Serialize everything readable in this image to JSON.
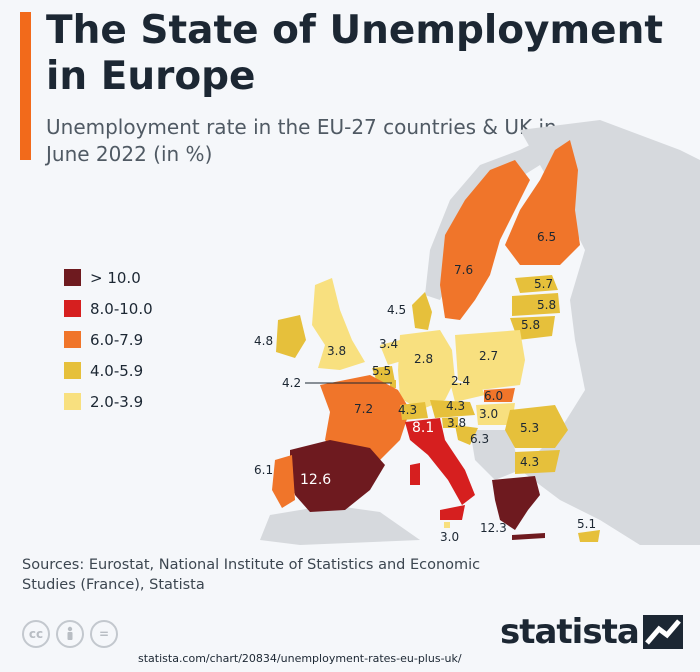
{
  "title": "The State of Unemployment in Europe",
  "subtitle": "Unemployment rate in the EU-27 countries & UK in June 2022 (in %)",
  "colors": {
    "accent": "#f26a1b",
    "gt10": "#6e1a1f",
    "r8to10": "#d61f1f",
    "r6to8": "#f0752a",
    "r4to6": "#e6c03b",
    "r2to4": "#f8e07f",
    "non_eu": "#d6d9dd",
    "sea": "#f5f7fa"
  },
  "legend": [
    {
      "label": "> 10.0",
      "color": "#6e1a1f"
    },
    {
      "label": "8.0-10.0",
      "color": "#d61f1f"
    },
    {
      "label": "6.0-7.9",
      "color": "#f0752a"
    },
    {
      "label": "4.0-5.9",
      "color": "#e6c03b"
    },
    {
      "label": "2.0-3.9",
      "color": "#f8e07f"
    }
  ],
  "map_labels": {
    "finland": "6.5",
    "sweden": "7.6",
    "estonia": "5.7",
    "latvia": "5.8",
    "lithuania": "5.8",
    "denmark": "4.5",
    "ireland": "4.8",
    "uk": "3.8",
    "netherlands": "3.4",
    "belgium": "5.5",
    "luxembourg": "4.2",
    "germany": "2.8",
    "poland": "2.7",
    "czechia": "2.4",
    "slovakia": "6.0",
    "france": "7.2",
    "switzerland_area": "4.3",
    "austria": "4.3",
    "hungary": "3.0",
    "slovenia": "8.1",
    "croatia": "3.8",
    "serbia_area": "6.3",
    "romania": "5.3",
    "bulgaria": "4.3",
    "portugal": "6.1",
    "spain": "12.6",
    "greece": "12.3",
    "malta": "3.0",
    "cyprus": "5.1"
  },
  "sources": "Sources: Eurostat, National Institute of Statistics and Economic Studies (France), Statista",
  "footer_icons": [
    "cc-icon",
    "person-icon",
    "equals-icon"
  ],
  "logo": {
    "text": "statista"
  },
  "url": "statista.com/chart/20834/unemployment-rates-eu-plus-uk/"
}
